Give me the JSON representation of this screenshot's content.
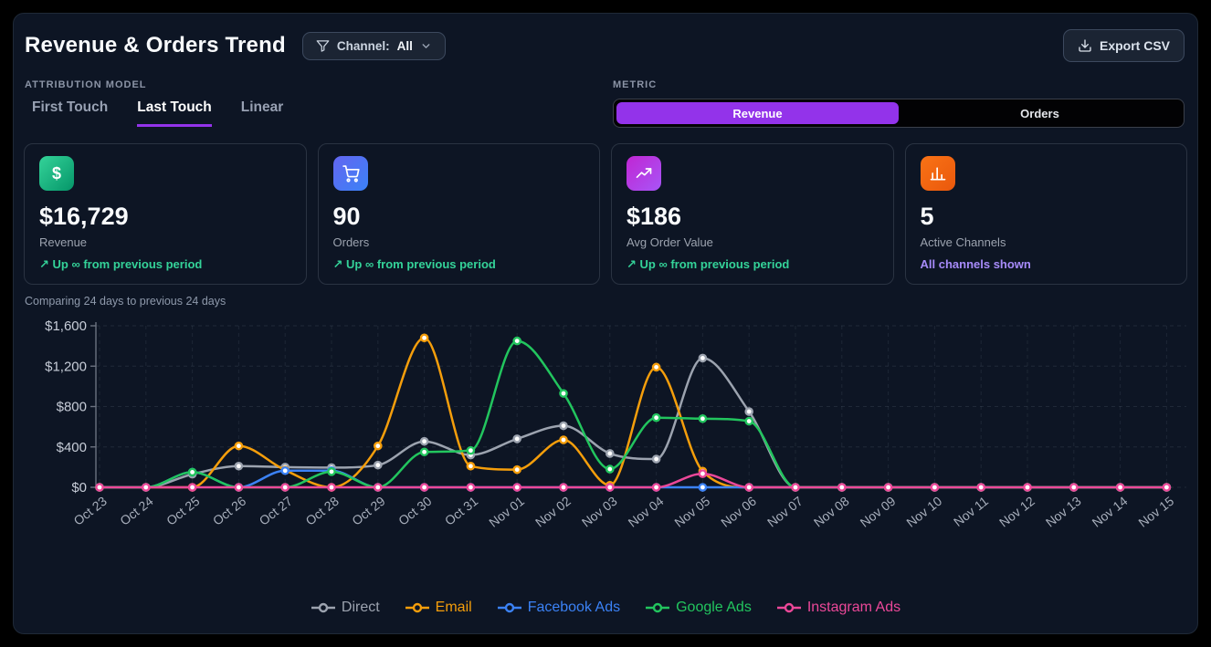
{
  "header": {
    "title": "Revenue & Orders Trend",
    "channel_filter": {
      "label": "Channel:",
      "value": "All"
    },
    "export_label": "Export CSV"
  },
  "attribution": {
    "label": "ATTRIBUTION MODEL",
    "tabs": [
      {
        "label": "First Touch",
        "active": false
      },
      {
        "label": "Last Touch",
        "active": true
      },
      {
        "label": "Linear",
        "active": false
      }
    ]
  },
  "metric": {
    "label": "METRIC",
    "options": [
      {
        "label": "Revenue",
        "active": true
      },
      {
        "label": "Orders",
        "active": false
      }
    ]
  },
  "stats": [
    {
      "value": "$16,729",
      "label": "Revenue",
      "change": "↗ Up ∞ from previous period",
      "change_color": "#34d399",
      "icon": "dollar-icon",
      "icon_gradient": [
        "#34d399",
        "#059669"
      ]
    },
    {
      "value": "90",
      "label": "Orders",
      "change": "↗ Up ∞ from previous period",
      "change_color": "#34d399",
      "icon": "cart-icon",
      "icon_gradient": [
        "#6366f1",
        "#3b82f6"
      ]
    },
    {
      "value": "$186",
      "label": "Avg Order Value",
      "change": "↗ Up ∞ from previous period",
      "change_color": "#34d399",
      "icon": "trending-up-icon",
      "icon_gradient": [
        "#c026d3",
        "#a855f7"
      ]
    },
    {
      "value": "5",
      "label": "Active Channels",
      "change": "All channels shown",
      "change_color": "#a78bfa",
      "icon": "bar-chart-icon",
      "icon_gradient": [
        "#f97316",
        "#ea580c"
      ]
    }
  ],
  "comparison_note": "Comparing 24 days to previous 24 days",
  "chart_data": {
    "type": "line",
    "x": [
      "Oct 23",
      "Oct 24",
      "Oct 25",
      "Oct 26",
      "Oct 27",
      "Oct 28",
      "Oct 29",
      "Oct 30",
      "Oct 31",
      "Nov 01",
      "Nov 02",
      "Nov 03",
      "Nov 04",
      "Nov 05",
      "Nov 06",
      "Nov 07",
      "Nov 08",
      "Nov 09",
      "Nov 10",
      "Nov 11",
      "Nov 12",
      "Nov 13",
      "Nov 14",
      "Nov 15"
    ],
    "series": [
      {
        "name": "Direct",
        "color": "#9ca3af",
        "values": [
          0,
          0,
          130,
          210,
          200,
          195,
          220,
          455,
          320,
          480,
          610,
          335,
          280,
          1280,
          750,
          0,
          0,
          0,
          0,
          0,
          0,
          0,
          0,
          0
        ]
      },
      {
        "name": "Email",
        "color": "#f59e0b",
        "values": [
          0,
          0,
          0,
          410,
          170,
          0,
          410,
          1480,
          210,
          175,
          470,
          20,
          1190,
          160,
          0,
          0,
          0,
          0,
          0,
          0,
          0,
          0,
          0,
          0
        ]
      },
      {
        "name": "Facebook Ads",
        "color": "#3b82f6",
        "values": [
          0,
          0,
          150,
          0,
          165,
          165,
          0,
          0,
          0,
          0,
          0,
          0,
          0,
          0,
          0,
          0,
          0,
          0,
          0,
          0,
          0,
          0,
          0,
          0
        ]
      },
      {
        "name": "Google Ads",
        "color": "#22c55e",
        "values": [
          0,
          0,
          150,
          0,
          0,
          155,
          0,
          350,
          365,
          1450,
          930,
          180,
          690,
          680,
          655,
          0,
          0,
          0,
          0,
          0,
          0,
          0,
          0,
          0
        ]
      },
      {
        "name": "Instagram Ads",
        "color": "#ec4899",
        "values": [
          0,
          0,
          0,
          0,
          0,
          0,
          0,
          0,
          0,
          0,
          0,
          0,
          0,
          135,
          0,
          0,
          0,
          0,
          0,
          0,
          0,
          0,
          0,
          0
        ]
      }
    ],
    "y_ticks": [
      {
        "v": 0,
        "label": "$0"
      },
      {
        "v": 400,
        "label": "$400"
      },
      {
        "v": 800,
        "label": "$800"
      },
      {
        "v": 1200,
        "label": "$1,200"
      },
      {
        "v": 1600,
        "label": "$1,600"
      }
    ],
    "ylim": [
      0,
      1600
    ],
    "grid": true,
    "legend_position": "bottom"
  }
}
